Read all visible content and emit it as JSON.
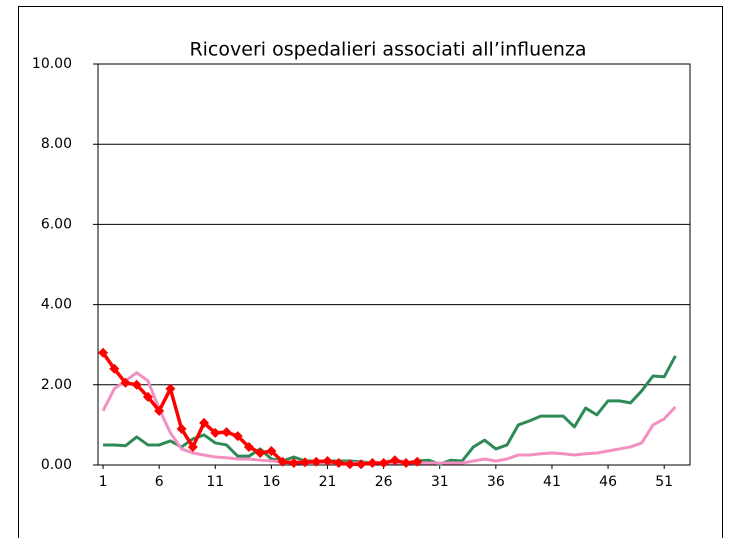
{
  "chart_data": {
    "type": "line",
    "title": "Ricoveri ospedalieri associati all’influenza",
    "x": [
      1,
      2,
      3,
      4,
      5,
      6,
      7,
      8,
      9,
      10,
      11,
      12,
      13,
      14,
      15,
      16,
      17,
      18,
      19,
      20,
      21,
      22,
      23,
      24,
      25,
      26,
      27,
      28,
      29,
      30,
      31,
      32,
      33,
      34,
      35,
      36,
      37,
      38,
      39,
      40,
      41,
      42,
      43,
      44,
      45,
      46,
      47,
      48,
      49,
      50,
      51,
      52
    ],
    "series": [
      {
        "color": "#2e8b57",
        "values": [
          0.5,
          0.5,
          0.48,
          0.7,
          0.5,
          0.5,
          0.6,
          0.45,
          0.65,
          0.75,
          0.55,
          0.5,
          0.22,
          0.22,
          0.4,
          0.15,
          0.1,
          0.2,
          0.1,
          0.1,
          0.1,
          0.1,
          0.1,
          0.08,
          0.05,
          0.05,
          0.05,
          0.05,
          0.1,
          0.12,
          0.02,
          0.12,
          0.1,
          0.45,
          0.62,
          0.4,
          0.5,
          1.0,
          1.1,
          1.22,
          1.22,
          1.22,
          0.95,
          1.42,
          1.25,
          1.6,
          1.6,
          1.55,
          1.85,
          2.22,
          2.2,
          2.72
        ]
      },
      {
        "color": "#f48fc1",
        "values": [
          1.35,
          1.9,
          2.1,
          2.3,
          2.1,
          1.4,
          0.8,
          0.4,
          0.3,
          0.25,
          0.2,
          0.18,
          0.15,
          0.15,
          0.12,
          0.1,
          0.08,
          0.08,
          0.07,
          0.07,
          0.06,
          0.05,
          0.05,
          0.05,
          0.05,
          0.05,
          0.05,
          0.05,
          0.05,
          0.05,
          0.05,
          0.05,
          0.05,
          0.1,
          0.15,
          0.1,
          0.15,
          0.25,
          0.25,
          0.28,
          0.3,
          0.28,
          0.25,
          0.28,
          0.3,
          0.35,
          0.4,
          0.45,
          0.55,
          1.0,
          1.15,
          1.45
        ]
      },
      {
        "color": "#ff0000",
        "marker": "diamond",
        "values": [
          2.8,
          2.4,
          2.05,
          2.0,
          1.7,
          1.35,
          1.9,
          0.9,
          0.45,
          1.05,
          0.8,
          0.82,
          0.72,
          0.45,
          0.3,
          0.35,
          0.08,
          0.05,
          0.07,
          0.08,
          0.1,
          0.05,
          0.02,
          0.02,
          0.05,
          0.05,
          0.12,
          0.05,
          0.08,
          null,
          null,
          null,
          null,
          null,
          null,
          null,
          null,
          null,
          null,
          null,
          null,
          null,
          null,
          null,
          null,
          null,
          null,
          null,
          null,
          null,
          null,
          null
        ]
      }
    ],
    "xlim": [
      0.55,
      53.3
    ],
    "xticks": [
      1,
      6,
      11,
      16,
      21,
      26,
      31,
      36,
      41,
      46,
      51
    ],
    "ylim": [
      0,
      10
    ],
    "yticks": [
      {
        "value": 0,
        "label": "0.00"
      },
      {
        "value": 2,
        "label": "2.00"
      },
      {
        "value": 4,
        "label": "4.00"
      },
      {
        "value": 6,
        "label": "6.00"
      },
      {
        "value": 8,
        "label": "8.00"
      },
      {
        "value": 10,
        "label": "10.00"
      }
    ],
    "grid": true
  }
}
